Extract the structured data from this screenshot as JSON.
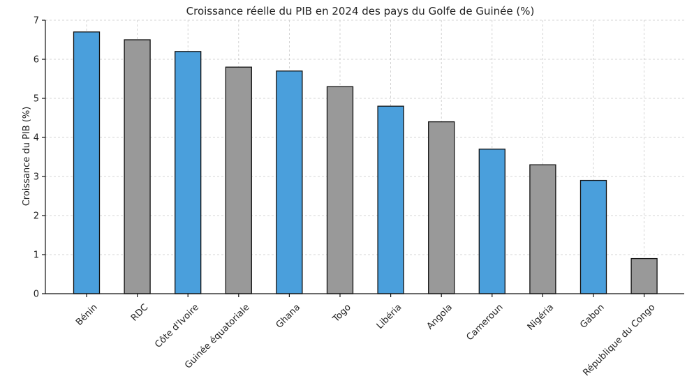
{
  "chart_data": {
    "type": "bar",
    "title": "Croissance réelle du PIB en 2024 des pays du Golfe de Guinée (%)",
    "xlabel": "",
    "ylabel": "Croissance du PIB (%)",
    "ylim": [
      0,
      7
    ],
    "yticks": [
      "0",
      "1",
      "2",
      "3",
      "4",
      "5",
      "6",
      "7"
    ],
    "grid": true,
    "categories": [
      "Bénin",
      "RDC",
      "Côte d'Ivoire",
      "Guinée équatoriale",
      "Ghana",
      "Togo",
      "Libéria",
      "Angola",
      "Cameroun",
      "Nigéria",
      "Gabon",
      "République du Congo"
    ],
    "values": [
      6.7,
      6.5,
      6.2,
      5.8,
      5.7,
      5.3,
      4.8,
      4.4,
      3.7,
      3.3,
      2.9,
      0.9
    ],
    "colors": [
      "#4a9fdc",
      "#999999",
      "#4a9fdc",
      "#999999",
      "#4a9fdc",
      "#999999",
      "#4a9fdc",
      "#999999",
      "#4a9fdc",
      "#999999",
      "#4a9fdc",
      "#999999"
    ]
  }
}
